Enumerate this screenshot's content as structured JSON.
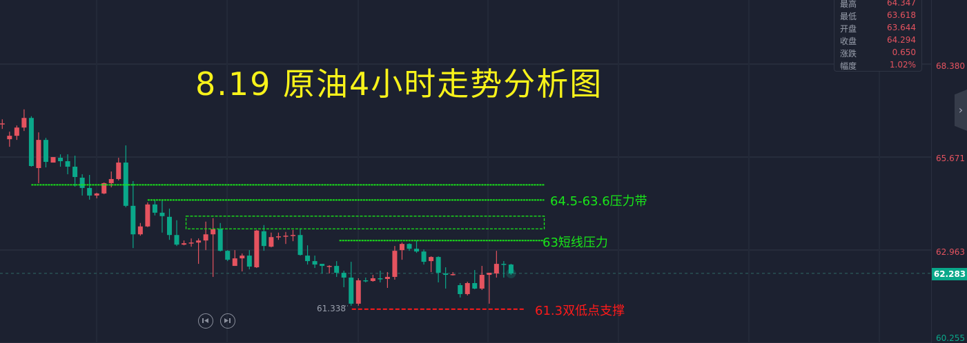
{
  "chart_data": {
    "type": "candlestick",
    "title": "8.19 原油4小时走势分析图",
    "ylim": [
      60.12,
      70.245
    ],
    "grid": true,
    "y_ticks": [
      "68.380",
      "65.671",
      "62.963",
      "60.255"
    ],
    "y_tick_values": [
      68.38,
      65.671,
      62.963,
      60.255
    ],
    "current_price": "62.283",
    "low_marker": "61.338",
    "up_color": "#e5535f",
    "down_color": "#0aa88a",
    "candles": [
      [
        66.65,
        66.77,
        66.49,
        66.65
      ],
      [
        66.19,
        66.41,
        65.97,
        66.29
      ],
      [
        66.29,
        66.59,
        66.17,
        66.53
      ],
      [
        66.53,
        67.06,
        66.43,
        66.81
      ],
      [
        66.81,
        66.86,
        65.39,
        65.41
      ],
      [
        65.35,
        66.39,
        64.91,
        66.17
      ],
      [
        66.17,
        66.23,
        65.37,
        65.53
      ],
      [
        65.51,
        65.67,
        65.51,
        65.67
      ],
      [
        65.65,
        65.75,
        65.39,
        65.55
      ],
      [
        65.55,
        65.75,
        65.17,
        65.39
      ],
      [
        65.39,
        65.71,
        64.81,
        65.09
      ],
      [
        65.07,
        65.17,
        64.55,
        64.77
      ],
      [
        64.77,
        65.15,
        64.43,
        64.55
      ],
      [
        64.55,
        64.63,
        64.47,
        64.61
      ],
      [
        64.61,
        64.93,
        64.59,
        64.91
      ],
      [
        64.91,
        65.25,
        64.79,
        65.03
      ],
      [
        65.03,
        65.65,
        64.99,
        65.51
      ],
      [
        65.51,
        66.01,
        64.21,
        64.25
      ],
      [
        64.25,
        64.97,
        63.02,
        63.42
      ],
      [
        63.42,
        63.75,
        63.38,
        63.65
      ],
      [
        63.65,
        64.35,
        63.63,
        64.29
      ],
      [
        64.29,
        64.41,
        63.97,
        64.05
      ],
      [
        64.05,
        64.41,
        63.47,
        63.95
      ],
      [
        63.93,
        64.17,
        63.26,
        63.4
      ],
      [
        63.4,
        63.83,
        63.08,
        63.12
      ],
      [
        63.12,
        63.24,
        63.1,
        63.16
      ],
      [
        63.18,
        63.3,
        63.06,
        63.181
      ],
      [
        63.18,
        63.3,
        62.56,
        63.24
      ],
      [
        63.24,
        63.79,
        62.96,
        63.42
      ],
      [
        63.42,
        63.89,
        62.18,
        63.57
      ],
      [
        63.57,
        63.75,
        62.92,
        62.94
      ],
      [
        62.94,
        62.96,
        62.64,
        62.68
      ],
      [
        62.5,
        62.96,
        62.5,
        62.72
      ],
      [
        62.72,
        62.86,
        62.34,
        62.8
      ],
      [
        62.8,
        62.96,
        62.4,
        62.48
      ],
      [
        62.46,
        63.55,
        62.44,
        63.53
      ],
      [
        63.51,
        63.69,
        62.94,
        63.08
      ],
      [
        63.06,
        63.47,
        63.04,
        63.34
      ],
      [
        63.36,
        63.47,
        63.26,
        63.361
      ],
      [
        63.36,
        63.49,
        63.14,
        63.38
      ],
      [
        63.4,
        63.55,
        63.22,
        63.401
      ],
      [
        63.4,
        63.59,
        62.8,
        62.82
      ],
      [
        62.8,
        63.1,
        62.54,
        62.64
      ],
      [
        62.64,
        62.8,
        62.44,
        62.54
      ],
      [
        62.56,
        62.56,
        62.28,
        62.5
      ],
      [
        62.48,
        62.52,
        62.28,
        62.5
      ],
      [
        62.5,
        62.64,
        62.18,
        62.3
      ],
      [
        62.3,
        62.36,
        61.88,
        62.16
      ],
      [
        62.16,
        62.62,
        61.34,
        61.4
      ],
      [
        61.4,
        62.14,
        61.34,
        62.08
      ],
      [
        62.08,
        62.16,
        62.02,
        62.06
      ],
      [
        62.06,
        62.24,
        62.04,
        62.14
      ],
      [
        62.14,
        62.36,
        62.02,
        62.12
      ],
      [
        62.12,
        62.32,
        61.86,
        62.18
      ],
      [
        62.18,
        63.08,
        62.1,
        62.94
      ],
      [
        62.96,
        63.18,
        62.68,
        63.14
      ],
      [
        63.14,
        63.16,
        62.94,
        63.0
      ],
      [
        63.0,
        63.24,
        62.88,
        62.92
      ],
      [
        62.92,
        62.98,
        62.54,
        62.62
      ],
      [
        62.64,
        62.78,
        62.32,
        62.76
      ],
      [
        62.76,
        62.78,
        62.02,
        62.3
      ],
      [
        62.28,
        62.46,
        61.84,
        62.24
      ],
      [
        62.24,
        62.32,
        62.22,
        62.26
      ],
      [
        61.94,
        62.0,
        61.58,
        61.68
      ],
      [
        61.68,
        62.04,
        61.64,
        62.0
      ],
      [
        62.0,
        62.38,
        61.82,
        61.84
      ],
      [
        61.84,
        62.5,
        61.8,
        62.24
      ],
      [
        62.24,
        62.3,
        61.4,
        62.3
      ],
      [
        62.28,
        62.94,
        62.16,
        62.56
      ],
      [
        62.56,
        62.64,
        62.16,
        62.54
      ],
      [
        62.54,
        62.56,
        62.24,
        62.28
      ]
    ],
    "annotations": {
      "resistance_lines": [
        {
          "price": 64.86,
          "from": 4,
          "to": 74
        },
        {
          "price": 64.42,
          "from": 20,
          "to": 74
        }
      ],
      "resistance_box": {
        "top": 63.95,
        "bottom": 63.58,
        "from": 25,
        "to": 74,
        "label": "64.5-63.6压力带"
      },
      "short_resistance": {
        "price": 63.24,
        "from": 46,
        "to": 74,
        "label": "63短线压力"
      },
      "support": {
        "price": 61.24,
        "from": 48,
        "to": 72,
        "label": "61.3双低点支撑"
      },
      "resistance_color": "#19e619",
      "support_color": "#ff1a1a"
    }
  },
  "info_panel": [
    {
      "label": "最高",
      "value": "64.347"
    },
    {
      "label": "最低",
      "value": "63.618"
    },
    {
      "label": "开盘",
      "value": "63.644"
    },
    {
      "label": "收盘",
      "value": "64.294"
    },
    {
      "label": "涨跌",
      "value": "0.650"
    },
    {
      "label": "幅度",
      "value": "1.02%"
    }
  ],
  "controls": {
    "prev_icon": "skip-back-icon",
    "next_icon": "skip-forward-icon",
    "expand_icon": "chevron-right-icon",
    "expand_glyph": "›"
  }
}
